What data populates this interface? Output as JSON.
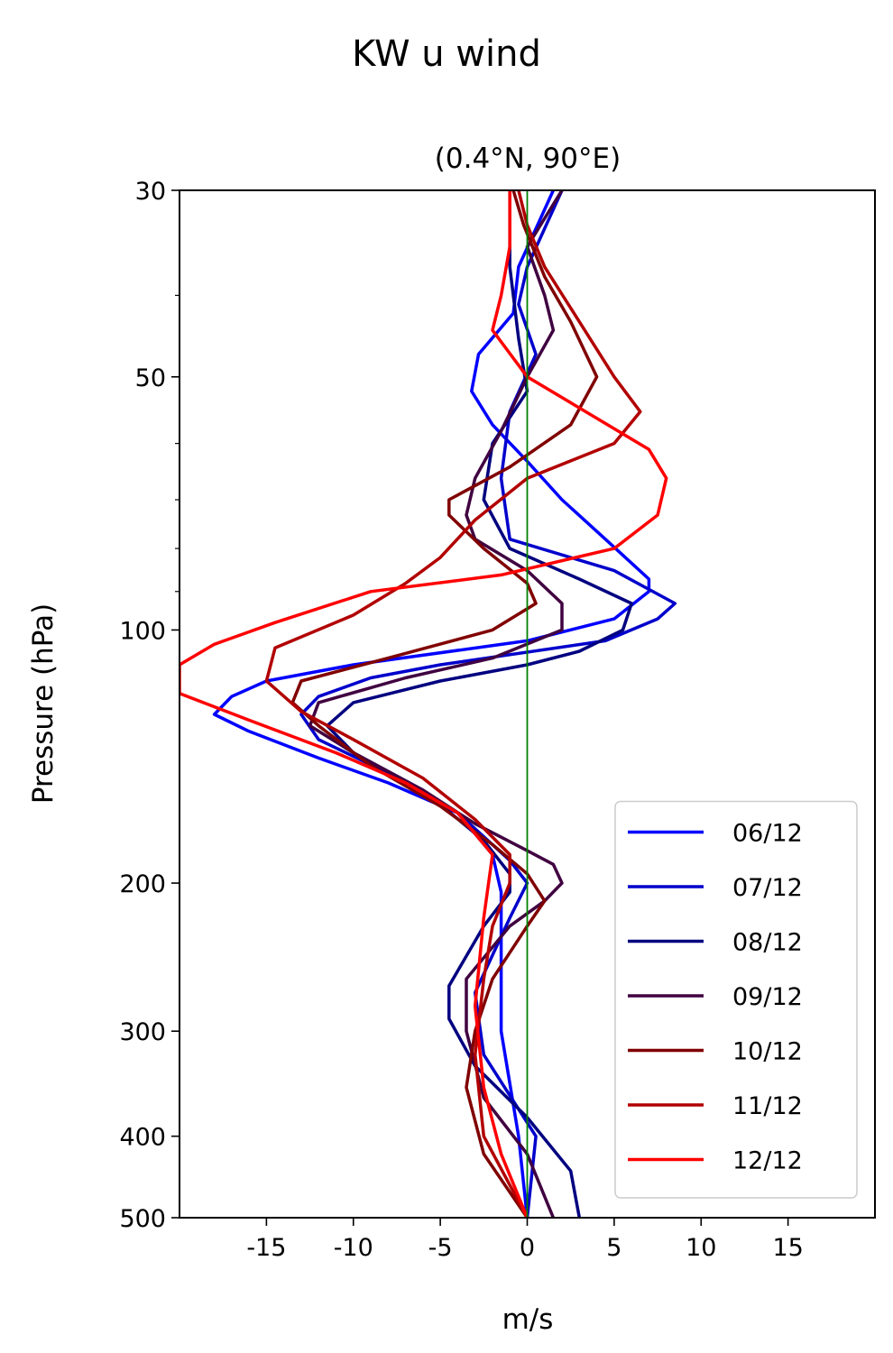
{
  "chart_data": {
    "type": "line",
    "title": "KW u wind",
    "subtitle": "(0.4°N, 90°E)",
    "xlabel": "m/s",
    "ylabel": "Pressure (hPa)",
    "xlim": [
      -20,
      20
    ],
    "ylim": [
      500,
      30
    ],
    "yscale": "log",
    "x_ticks": [
      -15,
      -10,
      -5,
      0,
      5,
      10,
      15
    ],
    "x_tick_labels": [
      "-15",
      "-10",
      "-5",
      "0",
      "5",
      "10",
      "15"
    ],
    "y_ticks": [
      30,
      50,
      100,
      200,
      300,
      400,
      500
    ],
    "y_tick_labels": [
      "30",
      "50",
      "100",
      "200",
      "300",
      "400",
      "500"
    ],
    "y_minor_ticks": [
      40,
      60,
      70,
      80,
      90
    ],
    "reference_line": {
      "x": 0,
      "color": "#008000"
    },
    "legend_position": "lower-right",
    "grid": false,
    "series": [
      {
        "name": "06/12",
        "color": "#0000ff",
        "points": [
          [
            1.5,
            30
          ],
          [
            -0.5,
            37
          ],
          [
            -0.8,
            42
          ],
          [
            -2.8,
            47
          ],
          [
            -3.2,
            52
          ],
          [
            -2,
            57
          ],
          [
            0,
            63
          ],
          [
            2,
            70
          ],
          [
            4.5,
            78
          ],
          [
            7,
            87
          ],
          [
            7,
            90
          ],
          [
            5,
            97
          ],
          [
            0,
            103
          ],
          [
            -10,
            110
          ],
          [
            -15,
            115
          ],
          [
            -17,
            120
          ],
          [
            -18,
            126
          ],
          [
            -16,
            132
          ],
          [
            -12,
            142
          ],
          [
            -8,
            152
          ],
          [
            -4,
            165
          ],
          [
            -2,
            185
          ],
          [
            -1.5,
            205
          ],
          [
            -1.5,
            240
          ],
          [
            -1.5,
            300
          ],
          [
            -0.5,
            400
          ],
          [
            0,
            500
          ]
        ]
      },
      {
        "name": "07/12",
        "color": "#0000cc",
        "points": [
          [
            2,
            30
          ],
          [
            0,
            37
          ],
          [
            -0.5,
            41
          ],
          [
            0.5,
            47
          ],
          [
            -1,
            55
          ],
          [
            -1.5,
            66
          ],
          [
            -1,
            78
          ],
          [
            5,
            85
          ],
          [
            8.5,
            93
          ],
          [
            7.5,
            97
          ],
          [
            4.5,
            103
          ],
          [
            -5,
            110
          ],
          [
            -9,
            114
          ],
          [
            -12,
            120
          ],
          [
            -13,
            126
          ],
          [
            -12,
            135
          ],
          [
            -8,
            148
          ],
          [
            -4,
            165
          ],
          [
            -1,
            188
          ],
          [
            0,
            200
          ],
          [
            -1,
            220
          ],
          [
            -3,
            270
          ],
          [
            -2.5,
            320
          ],
          [
            0.5,
            400
          ],
          [
            0,
            500
          ]
        ]
      },
      {
        "name": "08/12",
        "color": "#000080",
        "points": [
          [
            -1,
            30
          ],
          [
            -1,
            37
          ],
          [
            -0.5,
            45
          ],
          [
            0,
            52
          ],
          [
            -2,
            60
          ],
          [
            -2.5,
            70
          ],
          [
            -1,
            80
          ],
          [
            3,
            87
          ],
          [
            6,
            93
          ],
          [
            5.5,
            100
          ],
          [
            3,
            106
          ],
          [
            0,
            110
          ],
          [
            -5,
            115
          ],
          [
            -10,
            122
          ],
          [
            -11.5,
            130
          ],
          [
            -10,
            140
          ],
          [
            -6,
            155
          ],
          [
            -2.5,
            178
          ],
          [
            -1,
            195
          ],
          [
            -1,
            205
          ],
          [
            -2.5,
            225
          ],
          [
            -4.5,
            265
          ],
          [
            -4.5,
            290
          ],
          [
            -3,
            330
          ],
          [
            0,
            380
          ],
          [
            2.5,
            440
          ],
          [
            3,
            500
          ]
        ]
      },
      {
        "name": "09/12",
        "color": "#400040",
        "points": [
          [
            2,
            30
          ],
          [
            0,
            35
          ],
          [
            1,
            40
          ],
          [
            1.5,
            44
          ],
          [
            0,
            50
          ],
          [
            -1.5,
            58
          ],
          [
            -3,
            66
          ],
          [
            -3.5,
            73
          ],
          [
            -3,
            78
          ],
          [
            0,
            85
          ],
          [
            2,
            93
          ],
          [
            2,
            100
          ],
          [
            -2,
            108
          ],
          [
            -7,
            114
          ],
          [
            -12,
            122
          ],
          [
            -12.5,
            130
          ],
          [
            -10,
            140
          ],
          [
            -6,
            155
          ],
          [
            -3,
            170
          ],
          [
            0,
            183
          ],
          [
            1.5,
            190
          ],
          [
            2,
            200
          ],
          [
            1,
            210
          ],
          [
            -1,
            225
          ],
          [
            -3.5,
            260
          ],
          [
            -3.5,
            300
          ],
          [
            -2.5,
            360
          ],
          [
            0,
            420
          ],
          [
            1.5,
            500
          ]
        ]
      },
      {
        "name": "10/12",
        "color": "#800000",
        "points": [
          [
            -0.8,
            30
          ],
          [
            -0.2,
            33
          ],
          [
            1,
            38
          ],
          [
            2.5,
            43
          ],
          [
            4,
            50
          ],
          [
            2.5,
            57
          ],
          [
            -1,
            64
          ],
          [
            -4.5,
            70
          ],
          [
            -4.5,
            73
          ],
          [
            -2.5,
            80
          ],
          [
            0,
            88
          ],
          [
            0.5,
            93
          ],
          [
            -2,
            100
          ],
          [
            -8,
            108
          ],
          [
            -13,
            115
          ],
          [
            -13.5,
            122
          ],
          [
            -12,
            130
          ],
          [
            -9,
            145
          ],
          [
            -5,
            162
          ],
          [
            -2,
            180
          ],
          [
            0,
            195
          ],
          [
            1,
            210
          ],
          [
            0,
            225
          ],
          [
            -2,
            260
          ],
          [
            -3,
            300
          ],
          [
            -3.5,
            350
          ],
          [
            -2.5,
            420
          ],
          [
            0,
            500
          ]
        ]
      },
      {
        "name": "11/12",
        "color": "#b20000",
        "points": [
          [
            -0.5,
            30
          ],
          [
            0,
            33
          ],
          [
            1,
            37
          ],
          [
            3,
            43
          ],
          [
            5,
            50
          ],
          [
            6.5,
            55
          ],
          [
            5,
            60
          ],
          [
            0,
            66
          ],
          [
            -3,
            74
          ],
          [
            -5,
            82
          ],
          [
            -7,
            88
          ],
          [
            -10,
            96
          ],
          [
            -14.5,
            105
          ],
          [
            -15,
            115
          ],
          [
            -13,
            125
          ],
          [
            -10,
            135
          ],
          [
            -6,
            150
          ],
          [
            -3,
            168
          ],
          [
            -1,
            185
          ],
          [
            -1,
            200
          ],
          [
            -2,
            225
          ],
          [
            -2.5,
            260
          ],
          [
            -3,
            320
          ],
          [
            -2.5,
            400
          ],
          [
            0,
            500
          ]
        ]
      },
      {
        "name": "12/12",
        "color": "#ff0000",
        "points": [
          [
            -1,
            30
          ],
          [
            -1,
            35
          ],
          [
            -1.5,
            40
          ],
          [
            -2,
            44
          ],
          [
            0,
            50
          ],
          [
            4,
            56
          ],
          [
            7,
            61
          ],
          [
            8,
            66
          ],
          [
            7.5,
            73
          ],
          [
            5,
            80
          ],
          [
            -1.5,
            86
          ],
          [
            -9,
            90
          ],
          [
            -14.5,
            98
          ],
          [
            -18,
            104
          ],
          [
            -20,
            110
          ],
          [
            -20,
            119
          ],
          [
            -16,
            128
          ],
          [
            -11,
            140
          ],
          [
            -7,
            152
          ],
          [
            -4,
            165
          ],
          [
            -2,
            185
          ],
          [
            -2.5,
            220
          ],
          [
            -3,
            280
          ],
          [
            -2.5,
            350
          ],
          [
            -1.5,
            420
          ],
          [
            0,
            500
          ]
        ]
      }
    ]
  }
}
